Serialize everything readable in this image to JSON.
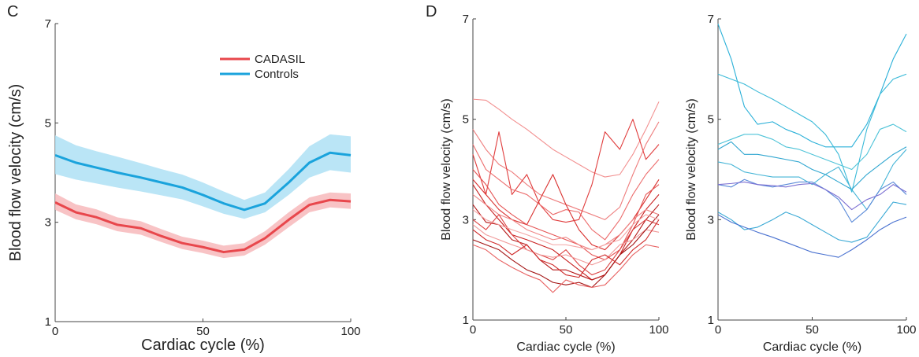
{
  "panels": {
    "C": {
      "letter": "C"
    },
    "D": {
      "letter": "D"
    }
  },
  "chart_data": [
    {
      "type": "line",
      "panel": "C",
      "xlabel": "Cardiac cycle (%)",
      "ylabel": "Blood flow velocity (cm/s)",
      "xlim": [
        0,
        100
      ],
      "ylim": [
        1,
        7
      ],
      "xticks": [
        0,
        50,
        100
      ],
      "yticks": [
        1,
        3,
        5,
        7
      ],
      "legend_position": "top-center",
      "series": [
        {
          "name": "CADASIL",
          "color": "#e8474c",
          "band_color": "#f7b9bb",
          "x": [
            0,
            7,
            14,
            21,
            29,
            36,
            43,
            50,
            57,
            64,
            71,
            79,
            86,
            93,
            100
          ],
          "y": [
            3.4,
            3.2,
            3.1,
            2.95,
            2.88,
            2.72,
            2.58,
            2.5,
            2.4,
            2.45,
            2.68,
            3.05,
            3.35,
            3.45,
            3.42
          ],
          "lower": [
            3.25,
            3.06,
            2.96,
            2.82,
            2.75,
            2.6,
            2.46,
            2.38,
            2.28,
            2.33,
            2.55,
            2.9,
            3.2,
            3.3,
            3.27
          ],
          "upper": [
            3.58,
            3.36,
            3.26,
            3.1,
            3.02,
            2.86,
            2.71,
            2.63,
            2.53,
            2.58,
            2.82,
            3.2,
            3.5,
            3.6,
            3.58
          ]
        },
        {
          "name": "Controls",
          "color": "#1aa3dc",
          "band_color": "#aee0f5",
          "x": [
            0,
            7,
            14,
            21,
            29,
            36,
            43,
            50,
            57,
            64,
            71,
            79,
            86,
            93,
            100
          ],
          "y": [
            4.35,
            4.2,
            4.1,
            4.0,
            3.9,
            3.8,
            3.7,
            3.55,
            3.38,
            3.25,
            3.38,
            3.8,
            4.2,
            4.4,
            4.35
          ],
          "lower": [
            3.97,
            3.86,
            3.78,
            3.7,
            3.62,
            3.54,
            3.46,
            3.32,
            3.17,
            3.07,
            3.2,
            3.55,
            3.9,
            4.05,
            4.0
          ],
          "upper": [
            4.75,
            4.55,
            4.43,
            4.32,
            4.19,
            4.07,
            3.96,
            3.8,
            3.62,
            3.45,
            3.6,
            4.07,
            4.53,
            4.77,
            4.73
          ]
        }
      ]
    },
    {
      "type": "line",
      "panel": "D-left",
      "xlabel": "Cardiac cycle (%)",
      "ylabel": "Blood flow velocity (cm/s)",
      "xlim": [
        0,
        100
      ],
      "ylim": [
        1,
        7
      ],
      "xticks": [
        0,
        50,
        100
      ],
      "yticks": [
        1,
        3,
        5,
        7
      ],
      "series": [
        {
          "color": "#f28f8f",
          "x": [
            0,
            7,
            14,
            21,
            29,
            36,
            43,
            50,
            57,
            64,
            71,
            79,
            86,
            93,
            100
          ],
          "y": [
            5.4,
            5.38,
            5.2,
            5.0,
            4.8,
            4.6,
            4.4,
            4.25,
            4.1,
            3.95,
            3.85,
            3.9,
            4.3,
            4.8,
            5.35
          ]
        },
        {
          "color": "#ee7d7d",
          "x": [
            0,
            7,
            14,
            21,
            29,
            36,
            43,
            50,
            57,
            64,
            71,
            79,
            86,
            93,
            100
          ],
          "y": [
            4.8,
            4.4,
            4.1,
            3.95,
            3.7,
            3.5,
            3.4,
            3.3,
            3.2,
            3.1,
            3.0,
            3.25,
            3.9,
            4.5,
            4.95
          ]
        },
        {
          "color": "#e03c3c",
          "x": [
            0,
            7,
            14,
            21,
            29,
            36,
            43,
            50,
            57,
            64,
            71,
            79,
            86,
            93,
            100
          ],
          "y": [
            4.3,
            3.5,
            4.75,
            3.5,
            3.9,
            3.3,
            3.0,
            2.95,
            3.0,
            3.7,
            4.75,
            4.4,
            5.0,
            4.2,
            4.5
          ]
        },
        {
          "color": "#ec6c6c",
          "x": [
            0,
            7,
            14,
            21,
            29,
            36,
            43,
            50,
            57,
            64,
            71,
            79,
            86,
            93,
            100
          ],
          "y": [
            4.5,
            4.0,
            3.8,
            3.6,
            3.5,
            3.3,
            3.1,
            3.2,
            3.15,
            2.8,
            2.6,
            3.0,
            3.5,
            3.9,
            4.2
          ]
        },
        {
          "color": "#d9302e",
          "x": [
            0,
            7,
            14,
            21,
            29,
            36,
            43,
            50,
            57,
            64,
            71,
            79,
            86,
            93,
            100
          ],
          "y": [
            3.8,
            3.5,
            3.2,
            3.0,
            2.9,
            3.4,
            3.9,
            3.3,
            2.8,
            2.5,
            2.4,
            2.7,
            3.0,
            3.4,
            3.8
          ]
        },
        {
          "color": "#e55454",
          "x": [
            0,
            7,
            14,
            21,
            29,
            36,
            43,
            50,
            57,
            64,
            71,
            79,
            86,
            93,
            100
          ],
          "y": [
            4.0,
            3.7,
            3.3,
            3.1,
            2.9,
            2.8,
            2.7,
            2.6,
            2.5,
            2.3,
            2.2,
            2.4,
            2.9,
            3.5,
            3.7
          ]
        },
        {
          "color": "#c82020",
          "x": [
            0,
            7,
            14,
            21,
            29,
            36,
            43,
            50,
            57,
            64,
            71,
            79,
            86,
            93,
            100
          ],
          "y": [
            3.7,
            3.3,
            3.0,
            2.7,
            2.6,
            2.5,
            2.4,
            2.2,
            2.0,
            1.8,
            1.9,
            2.3,
            2.8,
            3.2,
            3.5
          ]
        },
        {
          "color": "#ef8585",
          "x": [
            0,
            7,
            14,
            21,
            29,
            36,
            43,
            50,
            57,
            64,
            71,
            79,
            86,
            93,
            100
          ],
          "y": [
            3.5,
            3.3,
            3.1,
            3.0,
            2.8,
            2.7,
            2.6,
            2.65,
            2.5,
            2.4,
            2.5,
            2.7,
            3.0,
            3.2,
            3.1
          ]
        },
        {
          "color": "#b51818",
          "x": [
            0,
            7,
            14,
            21,
            29,
            36,
            43,
            50,
            57,
            64,
            71,
            79,
            86,
            93,
            100
          ],
          "y": [
            3.3,
            2.95,
            2.9,
            2.6,
            2.5,
            2.2,
            2.0,
            2.0,
            1.9,
            1.8,
            1.9,
            2.3,
            2.6,
            3.0,
            3.3
          ]
        },
        {
          "color": "#dd4444",
          "x": [
            0,
            7,
            14,
            21,
            29,
            36,
            43,
            50,
            57,
            64,
            71,
            79,
            86,
            93,
            100
          ],
          "y": [
            3.0,
            2.8,
            3.1,
            2.7,
            2.4,
            2.3,
            2.2,
            2.4,
            2.1,
            1.9,
            2.0,
            2.4,
            2.8,
            3.0,
            2.9
          ]
        },
        {
          "color": "#f09999",
          "x": [
            0,
            7,
            14,
            21,
            29,
            36,
            43,
            50,
            57,
            64,
            71,
            79,
            86,
            93,
            100
          ],
          "y": [
            2.9,
            2.7,
            2.6,
            2.5,
            2.4,
            2.3,
            2.25,
            2.3,
            2.2,
            2.1,
            2.2,
            2.5,
            2.6,
            2.8,
            2.75
          ]
        },
        {
          "color": "#a31313",
          "x": [
            0,
            7,
            14,
            21,
            29,
            36,
            43,
            50,
            57,
            64,
            71,
            79,
            86,
            93,
            100
          ],
          "y": [
            2.6,
            2.5,
            2.4,
            2.2,
            2.0,
            1.9,
            1.75,
            1.7,
            1.75,
            1.65,
            1.9,
            2.3,
            2.5,
            2.8,
            3.1
          ]
        },
        {
          "color": "#e86262",
          "x": [
            0,
            7,
            14,
            21,
            29,
            36,
            43,
            50,
            57,
            64,
            71,
            79,
            86,
            93,
            100
          ],
          "y": [
            2.5,
            2.4,
            2.2,
            2.05,
            1.9,
            1.8,
            1.55,
            1.8,
            1.7,
            1.65,
            1.7,
            2.0,
            2.3,
            2.5,
            2.45
          ]
        },
        {
          "color": "#cf2a2a",
          "x": [
            0,
            7,
            14,
            21,
            29,
            36,
            43,
            50,
            57,
            64,
            71,
            79,
            86,
            93,
            100
          ],
          "y": [
            2.8,
            2.6,
            2.5,
            2.3,
            2.5,
            2.2,
            2.1,
            1.9,
            1.85,
            2.2,
            2.3,
            2.1,
            2.4,
            2.6,
            3.0
          ]
        },
        {
          "color": "#f4a5a5",
          "x": [
            0,
            7,
            14,
            21,
            29,
            36,
            43,
            50,
            57,
            64,
            71,
            79,
            86,
            93,
            100
          ],
          "y": [
            3.2,
            3.0,
            2.9,
            2.8,
            2.7,
            2.6,
            2.5,
            2.5,
            2.45,
            2.4,
            2.5,
            2.6,
            2.9,
            3.1,
            3.0
          ]
        }
      ]
    },
    {
      "type": "line",
      "panel": "D-right",
      "xlabel": "Cardiac cycle (%)",
      "ylabel": "Blood flow velocity (cm/s)",
      "xlim": [
        0,
        100
      ],
      "ylim": [
        1,
        7
      ],
      "xticks": [
        0,
        50,
        100
      ],
      "yticks": [
        1,
        3,
        5,
        7
      ],
      "series": [
        {
          "color": "#2ab0d8",
          "x": [
            0,
            7,
            14,
            21,
            29,
            36,
            43,
            50,
            57,
            64,
            71,
            79,
            86,
            93,
            100
          ],
          "y": [
            6.9,
            6.2,
            5.25,
            4.9,
            4.95,
            4.8,
            4.7,
            4.55,
            4.45,
            4.45,
            4.45,
            4.9,
            5.5,
            6.2,
            6.7
          ]
        },
        {
          "color": "#3bbad8",
          "x": [
            0,
            7,
            14,
            21,
            29,
            36,
            43,
            50,
            57,
            64,
            71,
            79,
            86,
            93,
            100
          ],
          "y": [
            5.9,
            5.8,
            5.7,
            5.55,
            5.4,
            5.25,
            5.1,
            4.95,
            4.7,
            4.3,
            3.55,
            4.8,
            5.5,
            5.8,
            5.9
          ]
        },
        {
          "color": "#4ec3d8",
          "x": [
            0,
            7,
            14,
            21,
            29,
            36,
            43,
            50,
            57,
            64,
            71,
            79,
            86,
            93,
            100
          ],
          "y": [
            4.5,
            4.6,
            4.7,
            4.7,
            4.6,
            4.45,
            4.4,
            4.3,
            4.2,
            4.1,
            4.0,
            4.3,
            4.8,
            4.9,
            4.75
          ]
        },
        {
          "color": "#2fa6d0",
          "x": [
            0,
            7,
            14,
            21,
            29,
            36,
            43,
            50,
            57,
            64,
            71,
            79,
            86,
            93,
            100
          ],
          "y": [
            4.4,
            4.55,
            4.3,
            4.3,
            4.25,
            4.2,
            4.15,
            4.0,
            3.9,
            3.75,
            3.6,
            3.9,
            4.1,
            4.3,
            4.45
          ]
        },
        {
          "color": "#44b4d6",
          "x": [
            0,
            7,
            14,
            21,
            29,
            36,
            43,
            50,
            57,
            64,
            71,
            79,
            86,
            93,
            100
          ],
          "y": [
            4.15,
            4.1,
            3.95,
            3.9,
            3.85,
            3.85,
            3.85,
            3.7,
            3.9,
            4.05,
            3.6,
            3.2,
            3.6,
            4.1,
            4.4
          ]
        },
        {
          "color": "#5a8ad8",
          "x": [
            0,
            7,
            14,
            21,
            29,
            36,
            43,
            50,
            57,
            64,
            71,
            79,
            86,
            93,
            100
          ],
          "y": [
            3.7,
            3.65,
            3.8,
            3.7,
            3.65,
            3.7,
            3.75,
            3.75,
            3.6,
            3.4,
            2.95,
            3.2,
            3.6,
            3.75,
            3.5
          ]
        },
        {
          "color": "#7b6fd2",
          "x": [
            0,
            7,
            14,
            21,
            29,
            36,
            43,
            50,
            57,
            64,
            71,
            79,
            86,
            93,
            100
          ],
          "y": [
            3.7,
            3.72,
            3.75,
            3.7,
            3.68,
            3.65,
            3.7,
            3.72,
            3.6,
            3.45,
            3.2,
            3.4,
            3.5,
            3.7,
            3.55
          ]
        },
        {
          "color": "#3aa9d5",
          "x": [
            0,
            7,
            14,
            21,
            29,
            36,
            43,
            50,
            57,
            64,
            71,
            79,
            86,
            93,
            100
          ],
          "y": [
            3.15,
            3.0,
            2.8,
            2.85,
            3.0,
            3.15,
            3.05,
            2.9,
            2.75,
            2.6,
            2.55,
            2.65,
            3.0,
            3.35,
            3.3
          ]
        },
        {
          "color": "#4a72d0",
          "x": [
            0,
            7,
            14,
            21,
            29,
            36,
            43,
            50,
            57,
            64,
            71,
            79,
            86,
            93,
            100
          ],
          "y": [
            3.1,
            2.95,
            2.85,
            2.75,
            2.65,
            2.55,
            2.45,
            2.35,
            2.3,
            2.25,
            2.4,
            2.6,
            2.8,
            2.95,
            3.05
          ]
        }
      ]
    }
  ]
}
